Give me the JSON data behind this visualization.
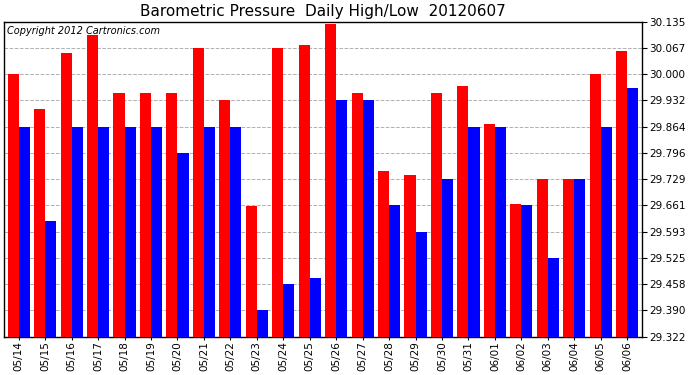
{
  "title": "Barometric Pressure  Daily High/Low  20120607",
  "copyright": "Copyright 2012 Cartronics.com",
  "dates": [
    "05/14",
    "05/15",
    "05/16",
    "05/17",
    "05/18",
    "05/19",
    "05/20",
    "05/21",
    "05/22",
    "05/23",
    "05/24",
    "05/25",
    "05/26",
    "05/27",
    "05/28",
    "05/29",
    "05/30",
    "05/31",
    "06/01",
    "06/02",
    "06/03",
    "06/04",
    "06/05",
    "06/06"
  ],
  "highs": [
    30.0,
    29.91,
    30.055,
    30.1,
    29.95,
    29.95,
    29.95,
    30.067,
    29.932,
    29.66,
    30.067,
    30.075,
    30.13,
    29.95,
    29.75,
    29.74,
    29.95,
    29.97,
    29.87,
    29.664,
    29.73,
    29.73,
    30.0,
    30.06
  ],
  "lows": [
    29.864,
    29.62,
    29.864,
    29.864,
    29.864,
    29.864,
    29.796,
    29.864,
    29.864,
    29.39,
    29.458,
    29.474,
    29.932,
    29.932,
    29.661,
    29.593,
    29.729,
    29.864,
    29.864,
    29.661,
    29.525,
    29.729,
    29.864,
    29.965
  ],
  "high_color": "#ff0000",
  "low_color": "#0000ff",
  "bg_color": "#ffffff",
  "grid_color": "#b0b0b0",
  "ymin": 29.322,
  "ymax": 30.135,
  "yticks": [
    29.322,
    29.39,
    29.458,
    29.525,
    29.593,
    29.661,
    29.729,
    29.796,
    29.864,
    29.932,
    30.0,
    30.067,
    30.135
  ],
  "title_fontsize": 11,
  "copyright_fontsize": 7,
  "tick_fontsize": 7.5
}
